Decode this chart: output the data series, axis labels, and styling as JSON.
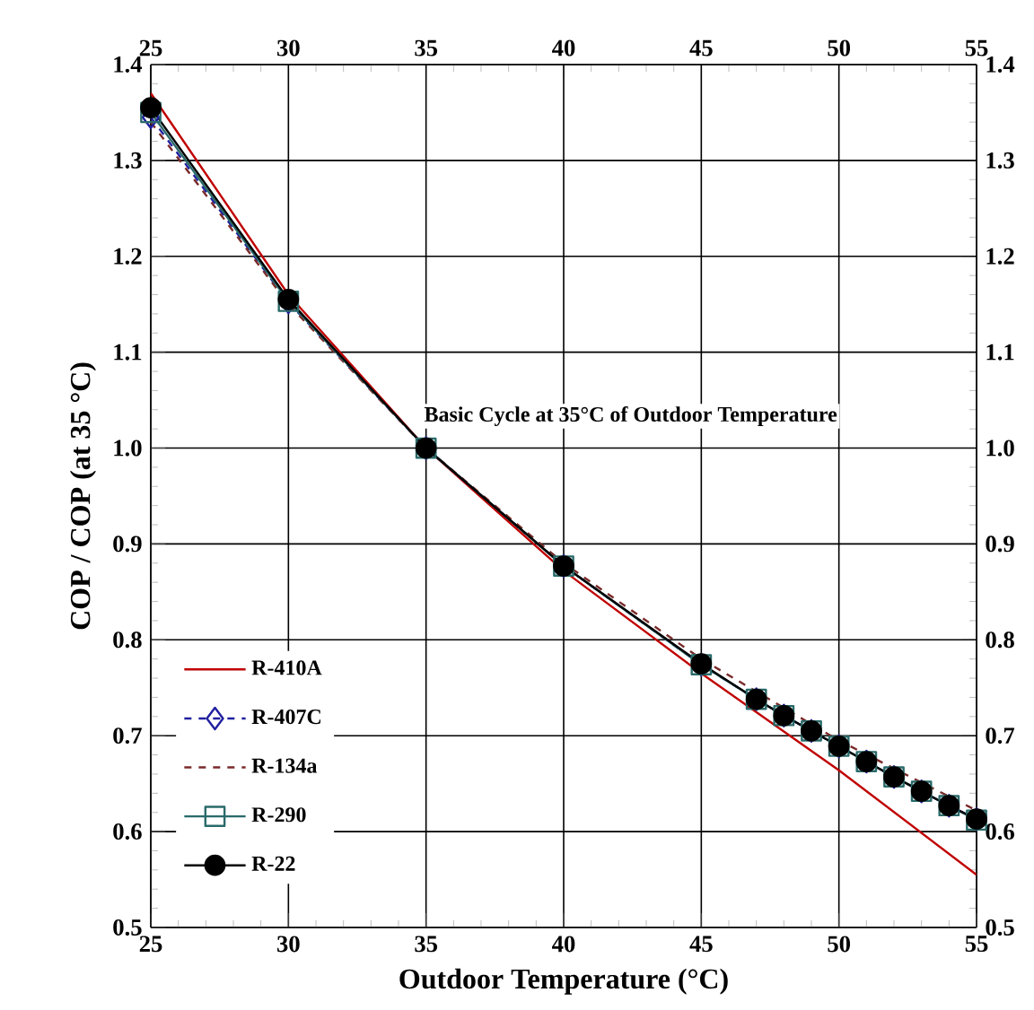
{
  "chart_data": {
    "type": "line",
    "xlabel": "Outdoor Temperature (°C)",
    "ylabel": "COP / COP (at 35 °C)",
    "xlim": [
      25,
      55
    ],
    "xticks": [
      25,
      30,
      35,
      40,
      45,
      50,
      55
    ],
    "ylim": [
      0.5,
      1.4
    ],
    "yticks": [
      0.5,
      0.6,
      0.7,
      0.8,
      0.9,
      {
        "value": 1,
        "label": "1.0"
      },
      1.1,
      1.2,
      1.3,
      1.4
    ],
    "x2lim": [
      25,
      55
    ],
    "x2ticks": [
      25,
      30,
      35,
      40,
      45,
      50,
      55
    ],
    "y2lim": [
      0.5,
      1.4
    ],
    "y2ticks": [
      0.5,
      0.6,
      0.7,
      0.8,
      0.9,
      {
        "value": 1,
        "label": "1.0"
      },
      1.1,
      1.2,
      1.3,
      1.4
    ],
    "grid": true,
    "legend": "bottom left",
    "annotations": [
      {
        "text": "Basic Cycle at 35°C of Outdoor Temperature",
        "x": 35,
        "y": 1.0
      }
    ],
    "series": [
      {
        "name": "R-410A",
        "color": "#c00000",
        "line_style": "solid",
        "marker": "none",
        "x": [
          25,
          30,
          35,
          40,
          45,
          50,
          55
        ],
        "values": [
          1.37,
          1.16,
          1.0,
          0.872,
          0.765,
          0.664,
          0.555
        ]
      },
      {
        "name": "R-407C",
        "color": "#2020a0",
        "line_style": "dashed",
        "marker": "diamond",
        "x": [
          25,
          30,
          35,
          40,
          45,
          47,
          48,
          49,
          50,
          51,
          52,
          53,
          54,
          55
        ],
        "values": [
          1.345,
          1.152,
          1.0,
          0.877,
          0.774,
          0.738,
          0.721,
          0.705,
          0.689,
          0.673,
          0.657,
          0.642,
          0.627,
          0.613
        ]
      },
      {
        "name": "R-134a",
        "color": "#7a2a2a",
        "line_style": "dashed",
        "marker": "none",
        "x": [
          25,
          30,
          35,
          40,
          45,
          50,
          55
        ],
        "values": [
          1.34,
          1.15,
          1.0,
          0.88,
          0.78,
          0.695,
          0.622
        ]
      },
      {
        "name": "R-290",
        "color": "#2a6a6a",
        "line_style": "solid",
        "marker": "square",
        "x": [
          25,
          30,
          35,
          40,
          45,
          47,
          48,
          49,
          50,
          51,
          52,
          53,
          54,
          55
        ],
        "values": [
          1.35,
          1.153,
          1.0,
          0.877,
          0.774,
          0.738,
          0.721,
          0.705,
          0.689,
          0.673,
          0.657,
          0.642,
          0.627,
          0.612
        ]
      },
      {
        "name": "R-22",
        "color": "#000000",
        "line_style": "solid",
        "marker": "circle",
        "x": [
          25,
          30,
          35,
          40,
          45,
          47,
          48,
          49,
          50,
          51,
          52,
          53,
          54,
          55
        ],
        "values": [
          1.355,
          1.155,
          1.0,
          0.877,
          0.775,
          0.738,
          0.721,
          0.705,
          0.689,
          0.673,
          0.657,
          0.642,
          0.627,
          0.613
        ]
      }
    ]
  }
}
